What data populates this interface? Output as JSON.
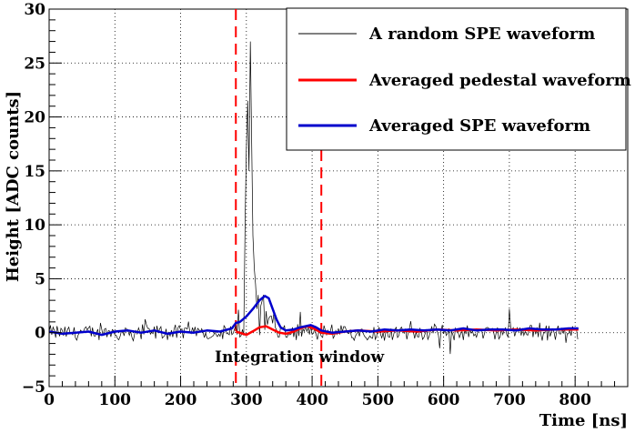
{
  "chart_data": {
    "type": "line",
    "title": "",
    "xlabel": "Time [ns]",
    "ylabel": "Height [ADC counts]",
    "xlim": [
      0,
      880
    ],
    "ylim": [
      -5,
      30
    ],
    "grid": true,
    "x_ticks": [
      "0",
      "100",
      "200",
      "300",
      "400",
      "500",
      "600",
      "700",
      "800"
    ],
    "y_ticks": [
      "−5",
      "0",
      "5",
      "10",
      "15",
      "20",
      "25",
      "30"
    ],
    "x_tick_values": [
      0,
      100,
      200,
      300,
      400,
      500,
      600,
      700,
      800
    ],
    "y_tick_values": [
      -5,
      0,
      5,
      10,
      15,
      20,
      25,
      30
    ],
    "integration_window": {
      "start": 284,
      "end": 414,
      "label": "Integration window"
    },
    "legend": {
      "position": "top-right",
      "entries": [
        {
          "label": "A random SPE waveform",
          "color": "#000000"
        },
        {
          "label": "Averaged pedestal waveform",
          "color": "#ff0000"
        },
        {
          "label": "Averaged SPE waveform",
          "color": "#0000cc"
        }
      ]
    },
    "series": [
      {
        "name": "A random SPE waveform",
        "color": "#000000",
        "sample_ns": 2,
        "x_start": 0,
        "x_end": 805,
        "noise_amplitude": 0.6,
        "peaks": [
          {
            "x": 298,
            "y": 10
          },
          {
            "x": 300,
            "y": 17
          },
          {
            "x": 302,
            "y": 21.5
          },
          {
            "x": 304,
            "y": 15
          },
          {
            "x": 306,
            "y": 27
          },
          {
            "x": 308,
            "y": 18
          },
          {
            "x": 310,
            "y": 9
          },
          {
            "x": 312,
            "y": 6
          },
          {
            "x": 314,
            "y": 4.5
          },
          {
            "x": 318,
            "y": 3.5
          },
          {
            "x": 322,
            "y": 2.5
          },
          {
            "x": 326,
            "y": 3.5
          },
          {
            "x": 330,
            "y": 2
          },
          {
            "x": 336,
            "y": 1.5
          },
          {
            "x": 344,
            "y": 0.5
          }
        ]
      },
      {
        "name": "Averaged pedestal waveform",
        "color": "#ff0000",
        "points": [
          [
            284,
            0.1
          ],
          [
            300,
            -0.2
          ],
          [
            312,
            0.2
          ],
          [
            320,
            0.5
          ],
          [
            330,
            0.6
          ],
          [
            340,
            0.3
          ],
          [
            350,
            0.0
          ],
          [
            360,
            -0.1
          ],
          [
            372,
            0.1
          ],
          [
            382,
            0.4
          ],
          [
            392,
            0.6
          ],
          [
            402,
            0.4
          ],
          [
            414,
            0.0
          ],
          [
            430,
            -0.1
          ],
          [
            450,
            0.1
          ],
          [
            470,
            0.2
          ],
          [
            500,
            0.1
          ],
          [
            530,
            0.2
          ],
          [
            560,
            0.1
          ],
          [
            590,
            0.3
          ],
          [
            620,
            0.2
          ],
          [
            650,
            0.3
          ],
          [
            680,
            0.2
          ],
          [
            710,
            0.3
          ],
          [
            740,
            0.2
          ],
          [
            770,
            0.3
          ],
          [
            805,
            0.3
          ]
        ]
      },
      {
        "name": "Averaged SPE waveform",
        "color": "#0000cc",
        "points": [
          [
            0,
            0.1
          ],
          [
            20,
            -0.1
          ],
          [
            40,
            0.0
          ],
          [
            60,
            0.1
          ],
          [
            80,
            -0.2
          ],
          [
            100,
            0.1
          ],
          [
            120,
            0.2
          ],
          [
            140,
            0.0
          ],
          [
            160,
            0.2
          ],
          [
            180,
            -0.1
          ],
          [
            200,
            0.1
          ],
          [
            220,
            0.0
          ],
          [
            240,
            0.2
          ],
          [
            260,
            0.1
          ],
          [
            278,
            0.4
          ],
          [
            284,
            0.9
          ],
          [
            290,
            1.0
          ],
          [
            300,
            1.5
          ],
          [
            310,
            2.2
          ],
          [
            320,
            3.0
          ],
          [
            328,
            3.4
          ],
          [
            334,
            3.2
          ],
          [
            340,
            2.2
          ],
          [
            346,
            1.2
          ],
          [
            352,
            0.5
          ],
          [
            360,
            0.2
          ],
          [
            372,
            0.3
          ],
          [
            382,
            0.5
          ],
          [
            390,
            0.6
          ],
          [
            398,
            0.7
          ],
          [
            406,
            0.5
          ],
          [
            414,
            0.2
          ],
          [
            430,
            0.0
          ],
          [
            450,
            0.1
          ],
          [
            470,
            0.2
          ],
          [
            490,
            0.1
          ],
          [
            510,
            0.3
          ],
          [
            530,
            0.2
          ],
          [
            550,
            0.3
          ],
          [
            570,
            0.2
          ],
          [
            590,
            0.3
          ],
          [
            610,
            0.2
          ],
          [
            630,
            0.4
          ],
          [
            650,
            0.2
          ],
          [
            670,
            0.3
          ],
          [
            690,
            0.3
          ],
          [
            710,
            0.2
          ],
          [
            730,
            0.4
          ],
          [
            750,
            0.3
          ],
          [
            770,
            0.3
          ],
          [
            790,
            0.4
          ],
          [
            805,
            0.4
          ]
        ]
      }
    ]
  }
}
